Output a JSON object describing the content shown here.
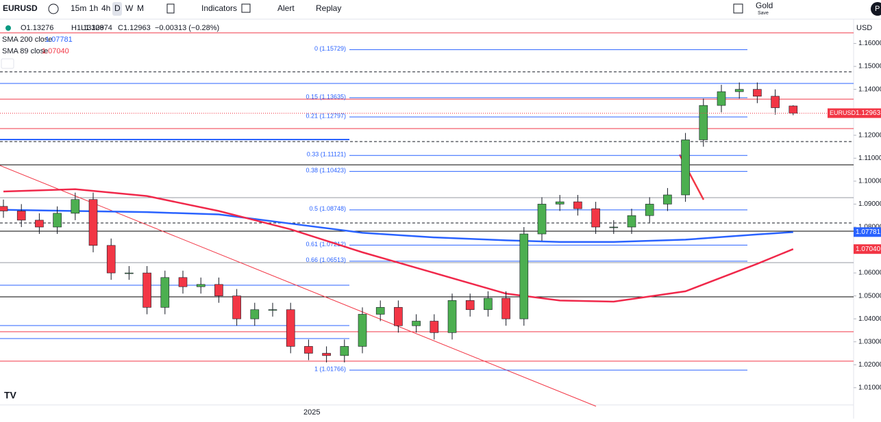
{
  "toolbar": {
    "symbol": "EURUSD",
    "intervals": [
      "15m",
      "1h",
      "4h",
      "D",
      "W",
      "M"
    ],
    "indicators": "Indicators",
    "alert": "Alert",
    "replay": "Replay",
    "plan": "Gold",
    "plan_sub": "Save",
    "avatar": "P"
  },
  "legend": {
    "open": "O1.13276",
    "high": "H1.13309",
    "low": "L1.12874",
    "close": "C1.12963",
    "change": "−0.00313 (−0.28%)",
    "sma200_label": "SMA 200 close",
    "sma200_value": "1.07781",
    "sma89_label": "SMA 89 close",
    "sma89_value": "1.07040"
  },
  "chart_data": {
    "type": "candlestick",
    "currency": "USD",
    "x_label": "2025",
    "ylim": [
      1.0025,
      1.17
    ],
    "yticks": [
      {
        "value": 1.16,
        "label": "1.16000"
      },
      {
        "value": 1.15,
        "label": "1.15000"
      },
      {
        "value": 1.14,
        "label": "1.14000"
      },
      {
        "value": 1.12,
        "label": "1.12000"
      },
      {
        "value": 1.11,
        "label": "1.11000"
      },
      {
        "value": 1.1,
        "label": "1.10000"
      },
      {
        "value": 1.09,
        "label": "1.09000"
      },
      {
        "value": 1.08,
        "label": "1.08000"
      },
      {
        "value": 1.06,
        "label": "1.06000"
      },
      {
        "value": 1.05,
        "label": "1.05000"
      },
      {
        "value": 1.04,
        "label": "1.04000"
      },
      {
        "value": 1.03,
        "label": "1.03000"
      },
      {
        "value": 1.02,
        "label": "1.02000"
      },
      {
        "value": 1.01,
        "label": "1.01000"
      }
    ],
    "open": [
      1.089,
      1.087,
      1.083,
      1.08,
      1.086,
      1.092,
      1.072,
      1.06,
      1.06,
      1.045,
      1.058,
      1.054,
      1.055,
      1.05,
      1.04,
      1.044,
      1.044,
      1.028,
      1.025,
      1.024,
      1.028,
      1.042,
      1.045,
      1.037,
      1.039,
      1.034,
      1.048,
      1.044,
      1.049,
      1.04,
      1.077,
      1.09,
      1.091,
      1.088,
      1.08,
      1.08,
      1.085,
      1.09,
      1.094,
      1.118,
      1.133,
      1.139,
      1.14,
      1.137,
      1.13276
    ],
    "high": [
      1.092,
      1.09,
      1.086,
      1.089,
      1.095,
      1.095,
      1.075,
      1.063,
      1.063,
      1.061,
      1.061,
      1.058,
      1.058,
      1.053,
      1.047,
      1.047,
      1.047,
      1.031,
      1.028,
      1.031,
      1.045,
      1.048,
      1.048,
      1.042,
      1.042,
      1.051,
      1.051,
      1.052,
      1.052,
      1.08,
      1.093,
      1.094,
      1.094,
      1.091,
      1.083,
      1.088,
      1.093,
      1.097,
      1.121,
      1.136,
      1.142,
      1.143,
      1.143,
      1.14,
      1.13309
    ],
    "low": [
      1.084,
      1.08,
      1.077,
      1.077,
      1.083,
      1.069,
      1.057,
      1.057,
      1.042,
      1.042,
      1.051,
      1.051,
      1.047,
      1.037,
      1.037,
      1.041,
      1.025,
      1.022,
      1.021,
      1.021,
      1.025,
      1.039,
      1.034,
      1.034,
      1.031,
      1.031,
      1.041,
      1.041,
      1.037,
      1.037,
      1.074,
      1.087,
      1.085,
      1.077,
      1.077,
      1.077,
      1.082,
      1.087,
      1.091,
      1.115,
      1.13,
      1.136,
      1.134,
      1.129,
      1.12874
    ],
    "close": [
      1.087,
      1.083,
      1.08,
      1.086,
      1.092,
      1.072,
      1.06,
      1.06,
      1.045,
      1.058,
      1.054,
      1.055,
      1.05,
      1.04,
      1.044,
      1.044,
      1.028,
      1.025,
      1.024,
      1.028,
      1.042,
      1.045,
      1.037,
      1.039,
      1.034,
      1.048,
      1.044,
      1.049,
      1.04,
      1.077,
      1.09,
      1.091,
      1.088,
      1.08,
      1.08,
      1.085,
      1.09,
      1.094,
      1.118,
      1.133,
      1.139,
      1.14,
      1.137,
      1.132,
      1.12963
    ],
    "up_color": "#4caf50",
    "down_color": "#f23645",
    "series": [
      {
        "name": "SMA 200 close",
        "color": "#2962ff",
        "x": [
          0,
          4,
          8,
          12,
          16,
          20,
          24,
          28,
          31,
          34,
          38,
          42,
          44
        ],
        "values": [
          1.0875,
          1.087,
          1.0865,
          1.0855,
          1.0815,
          1.0775,
          1.0755,
          1.0742,
          1.0735,
          1.0735,
          1.0745,
          1.0768,
          1.0778
        ]
      },
      {
        "name": "SMA 89 close",
        "color": "#f0284a",
        "x": [
          0,
          4,
          8,
          12,
          16,
          20,
          24,
          28,
          31,
          34,
          38,
          42,
          44
        ],
        "values": [
          1.0955,
          1.0965,
          1.0935,
          1.087,
          1.079,
          1.069,
          1.06,
          1.051,
          1.048,
          1.0475,
          1.052,
          1.064,
          1.0704
        ]
      }
    ],
    "fib_levels": [
      {
        "label": "0 (1.15729)",
        "price": 1.15729
      },
      {
        "label": "0.15 (1.13635)",
        "price": 1.13635
      },
      {
        "label": "0.21 (1.12797)",
        "price": 1.12797
      },
      {
        "label": "0.33 (1.11121)",
        "price": 1.11121
      },
      {
        "label": "0.38 (1.10423)",
        "price": 1.10423
      },
      {
        "label": "0.5 (1.08748)",
        "price": 1.08748
      },
      {
        "label": "0.61 (1.07212)",
        "price": 1.07212
      },
      {
        "label": "0.66 (1.06513)",
        "price": 1.06513
      },
      {
        "label": "1 (1.01766)",
        "price": 1.01766
      }
    ],
    "badges": [
      {
        "name": "EURUSD",
        "text": "1.12963",
        "price": 1.12963,
        "color": "#f23645"
      },
      {
        "text": "1.07781",
        "price": 1.07781,
        "color": "#2962ff"
      },
      {
        "text": "1.07040",
        "price": 1.0704,
        "color": "#f23645"
      }
    ]
  }
}
